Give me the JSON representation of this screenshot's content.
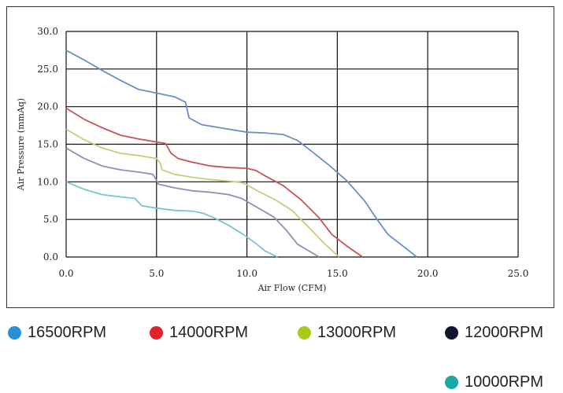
{
  "chart_data": {
    "type": "line",
    "xlabel": "Air Flow (CFM)",
    "ylabel": "Air Pressure (mmAq)",
    "xlim": [
      0,
      25
    ],
    "ylim": [
      0,
      30
    ],
    "xticks": [
      "0.0",
      "5.0",
      "10.0",
      "15.0",
      "20.0",
      "25.0"
    ],
    "yticks": [
      "0.0",
      "5.0",
      "10.0",
      "15.0",
      "20.0",
      "25.0",
      "30.0"
    ],
    "grid": true,
    "series": [
      {
        "name": "16500RPM",
        "color": "#6b8fc4",
        "legend_color": "#2a8fd8",
        "points": [
          [
            0,
            27.5
          ],
          [
            1,
            26.2
          ],
          [
            2,
            24.8
          ],
          [
            3,
            23.5
          ],
          [
            4,
            22.3
          ],
          [
            5,
            21.8
          ],
          [
            6,
            21.3
          ],
          [
            6.6,
            20.6
          ],
          [
            6.8,
            18.5
          ],
          [
            7.5,
            17.6
          ],
          [
            9,
            17
          ],
          [
            10,
            16.6
          ],
          [
            11,
            16.5
          ],
          [
            12,
            16.3
          ],
          [
            12.8,
            15.5
          ],
          [
            13.5,
            14.2
          ],
          [
            14.5,
            12.3
          ],
          [
            15.5,
            10.2
          ],
          [
            16.5,
            7.5
          ],
          [
            17.2,
            5
          ],
          [
            17.8,
            3
          ],
          [
            18.6,
            1.5
          ],
          [
            19.4,
            0
          ]
        ]
      },
      {
        "name": "14000RPM",
        "color": "#c9535a",
        "legend_color": "#e2222a",
        "points": [
          [
            0,
            19.8
          ],
          [
            1,
            18.3
          ],
          [
            2,
            17.2
          ],
          [
            3,
            16.2
          ],
          [
            4,
            15.7
          ],
          [
            5,
            15.3
          ],
          [
            5.5,
            15.1
          ],
          [
            5.8,
            13.8
          ],
          [
            6.2,
            13.1
          ],
          [
            7,
            12.6
          ],
          [
            8,
            12.1
          ],
          [
            9,
            11.9
          ],
          [
            10,
            11.8
          ],
          [
            10.5,
            11.5
          ],
          [
            11,
            10.8
          ],
          [
            12,
            9.5
          ],
          [
            13,
            7.6
          ],
          [
            14,
            5.2
          ],
          [
            14.7,
            3
          ],
          [
            15.5,
            1.5
          ],
          [
            16.4,
            0
          ]
        ]
      },
      {
        "name": "13000RPM",
        "color": "#bcd27a",
        "legend_color": "#aacb1e",
        "points": [
          [
            0,
            17
          ],
          [
            1,
            15.6
          ],
          [
            2,
            14.5
          ],
          [
            3,
            13.8
          ],
          [
            4,
            13.5
          ],
          [
            5,
            13.1
          ],
          [
            5.2,
            12.5
          ],
          [
            5.3,
            11.6
          ],
          [
            6,
            11
          ],
          [
            7,
            10.6
          ],
          [
            8,
            10.3
          ],
          [
            9,
            10.1
          ],
          [
            9.7,
            9.9
          ],
          [
            10,
            9.6
          ],
          [
            10.5,
            8.9
          ],
          [
            11.5,
            7.7
          ],
          [
            12.5,
            6.2
          ],
          [
            13.4,
            4
          ],
          [
            14.2,
            2
          ],
          [
            15.1,
            0
          ]
        ]
      },
      {
        "name": "12000RPM",
        "color": "#9b8ab8",
        "legend_color": "#12132f",
        "points": [
          [
            0,
            14.5
          ],
          [
            1,
            13.1
          ],
          [
            2,
            12.1
          ],
          [
            3,
            11.6
          ],
          [
            4,
            11.3
          ],
          [
            4.8,
            11
          ],
          [
            5,
            10.2
          ],
          [
            5.1,
            9.7
          ],
          [
            6,
            9.2
          ],
          [
            7,
            8.8
          ],
          [
            8,
            8.6
          ],
          [
            9,
            8.3
          ],
          [
            9.7,
            7.8
          ],
          [
            10.5,
            6.7
          ],
          [
            11.5,
            5.3
          ],
          [
            12.2,
            3.5
          ],
          [
            12.8,
            1.7
          ],
          [
            14,
            0
          ]
        ]
      },
      {
        "name": "10000RPM",
        "color": "#7cc4cc",
        "legend_color": "#1aa8a8",
        "points": [
          [
            0,
            10
          ],
          [
            1,
            9
          ],
          [
            2,
            8.3
          ],
          [
            3,
            8
          ],
          [
            3.8,
            7.8
          ],
          [
            4.2,
            6.8
          ],
          [
            5,
            6.5
          ],
          [
            6,
            6.2
          ],
          [
            7,
            6.1
          ],
          [
            7.6,
            5.8
          ],
          [
            8.2,
            5.2
          ],
          [
            9,
            4.2
          ],
          [
            9.8,
            3
          ],
          [
            10.5,
            1.8
          ],
          [
            11,
            0.8
          ],
          [
            11.7,
            0
          ]
        ]
      }
    ]
  }
}
